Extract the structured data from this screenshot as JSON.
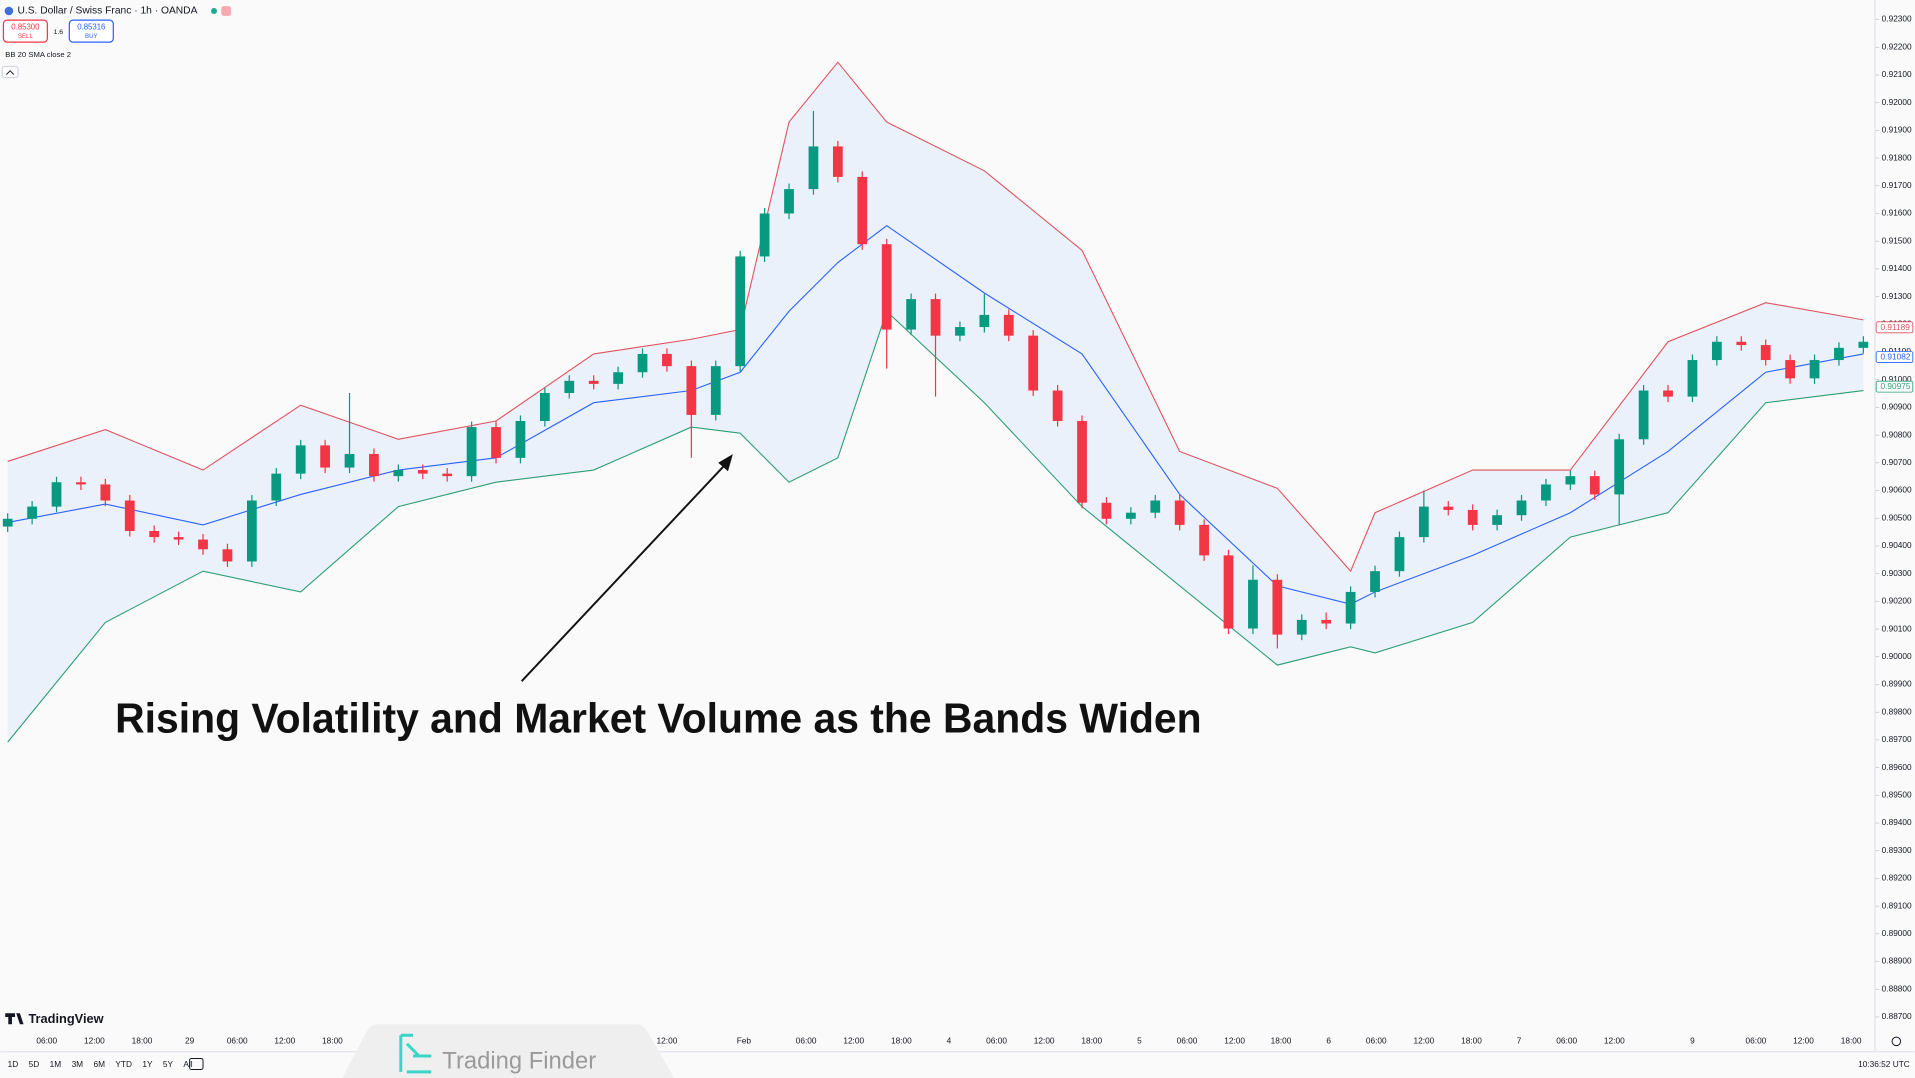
{
  "header": {
    "symbol": "U.S. Dollar / Swiss Franc · 1h · OANDA",
    "sell_price": "0.85300",
    "sell": "SELL",
    "spread": "1.6",
    "buy_price": "0.85316",
    "buy": "BUY",
    "indicator": "BB 20 SMA close 2"
  },
  "toolbar": {
    "ranges": [
      "1D",
      "5D",
      "1M",
      "3M",
      "6M",
      "YTD",
      "1Y",
      "5Y",
      "All"
    ],
    "clock": "10:36:52 UTC",
    "logo": "TradingView",
    "watermark": "Trading Finder"
  },
  "chart_data": {
    "type": "candlestick",
    "annotation": "Rising Volatility and Market Volume as the Bands Widen",
    "open": [
      0.9047,
      0.90498,
      0.90542,
      0.9063,
      0.90622,
      0.90564,
      0.90454,
      0.90432,
      0.90423,
      0.90388,
      0.90344,
      0.90564,
      0.90661,
      0.90763,
      0.90683,
      0.90732,
      0.90652,
      0.90674,
      0.90661,
      0.90652,
      0.90829,
      0.90718,
      0.90851,
      0.90952,
      0.90996,
      0.90985,
      0.91027,
      0.91093,
      0.91049,
      0.90873,
      0.91049,
      0.91445,
      0.916,
      0.91688,
      0.91842,
      0.91732,
      0.91489,
      0.91181,
      0.91291,
      0.91159,
      0.9119,
      0.91234,
      0.91159,
      0.90961,
      0.90851,
      0.90556,
      0.90498,
      0.9052,
      0.90564,
      0.90476,
      0.90366,
      0.90102,
      0.90278,
      0.9008,
      0.90133,
      0.9012,
      0.90234,
      0.90309,
      0.90432,
      0.90542,
      0.9053,
      0.90476,
      0.90511,
      0.90564,
      0.90622,
      0.90652,
      0.90586,
      0.90785,
      0.90961,
      0.90939,
      0.91071,
      0.91137,
      0.91125,
      0.91071,
      0.91005,
      0.91071,
      0.91115
    ],
    "high": [
      0.90518,
      0.90562,
      0.9065,
      0.9065,
      0.90642,
      0.90584,
      0.90474,
      0.90452,
      0.90443,
      0.90408,
      0.90584,
      0.90681,
      0.90783,
      0.90783,
      0.90952,
      0.90752,
      0.90694,
      0.90694,
      0.90681,
      0.90849,
      0.90849,
      0.90871,
      0.90972,
      0.91016,
      0.91016,
      0.91047,
      0.91113,
      0.91113,
      0.91069,
      0.91069,
      0.91465,
      0.9162,
      0.91708,
      0.9197,
      0.91862,
      0.91752,
      0.91509,
      0.91311,
      0.91311,
      0.9121,
      0.9131,
      0.91254,
      0.91179,
      0.90981,
      0.90871,
      0.90576,
      0.9054,
      0.90584,
      0.90584,
      0.90496,
      0.90386,
      0.9033,
      0.90298,
      0.90153,
      0.9016,
      0.90254,
      0.90329,
      0.90452,
      0.906,
      0.90562,
      0.9055,
      0.90531,
      0.90584,
      0.90642,
      0.90672,
      0.90672,
      0.90805,
      0.90981,
      0.90981,
      0.91091,
      0.91157,
      0.91157,
      0.91145,
      0.91091,
      0.91091,
      0.91135,
      0.91157
    ],
    "low": [
      0.9045,
      0.90478,
      0.90522,
      0.90602,
      0.90544,
      0.90434,
      0.90412,
      0.90403,
      0.90368,
      0.90324,
      0.90324,
      0.90544,
      0.90641,
      0.90663,
      0.90663,
      0.90632,
      0.90632,
      0.90641,
      0.90632,
      0.90632,
      0.90698,
      0.90698,
      0.90831,
      0.90932,
      0.90965,
      0.90965,
      0.91007,
      0.91029,
      0.90718,
      0.90853,
      0.91029,
      0.91425,
      0.9158,
      0.91668,
      0.91712,
      0.91469,
      0.9104,
      0.91161,
      0.90939,
      0.91139,
      0.9117,
      0.91139,
      0.90941,
      0.90831,
      0.90536,
      0.90478,
      0.90478,
      0.905,
      0.90456,
      0.90346,
      0.90082,
      0.90082,
      0.9003,
      0.9006,
      0.901,
      0.901,
      0.90214,
      0.90289,
      0.90412,
      0.9051,
      0.90456,
      0.90456,
      0.90491,
      0.90544,
      0.90602,
      0.90566,
      0.90476,
      0.90765,
      0.90919,
      0.90919,
      0.91051,
      0.91105,
      0.91051,
      0.90985,
      0.90985,
      0.91051,
      0.91095
    ],
    "close": [
      0.90498,
      0.90542,
      0.9063,
      0.90622,
      0.90564,
      0.90454,
      0.90432,
      0.90423,
      0.90388,
      0.90344,
      0.90564,
      0.90661,
      0.90763,
      0.90683,
      0.90732,
      0.90652,
      0.90674,
      0.90661,
      0.90652,
      0.90829,
      0.90718,
      0.90851,
      0.90952,
      0.90996,
      0.90985,
      0.91027,
      0.91093,
      0.91049,
      0.90873,
      0.91049,
      0.91445,
      0.916,
      0.91688,
      0.91842,
      0.91732,
      0.91489,
      0.91181,
      0.91291,
      0.91159,
      0.9119,
      0.91234,
      0.91159,
      0.90961,
      0.90851,
      0.90556,
      0.90498,
      0.9052,
      0.90564,
      0.90476,
      0.90366,
      0.90102,
      0.90278,
      0.9008,
      0.90133,
      0.9012,
      0.90234,
      0.90309,
      0.90432,
      0.90542,
      0.9053,
      0.90476,
      0.90511,
      0.90564,
      0.90622,
      0.90652,
      0.90586,
      0.90785,
      0.90961,
      0.90939,
      0.91071,
      0.91137,
      0.91125,
      0.91071,
      0.91005,
      0.91071,
      0.91115,
      0.91137
    ],
    "up_color": "#089981",
    "down_color": "#f23645",
    "band_fill": "#e3edf9",
    "band_x": [
      0,
      4,
      8,
      12,
      16,
      20,
      24,
      28,
      30,
      32,
      34,
      36,
      40,
      44,
      48,
      52,
      55,
      56,
      60,
      64,
      68,
      72,
      76
    ],
    "series": [
      {
        "color": "#e0525e",
        "values": [
          0.90705,
          0.9082,
          0.90674,
          0.90908,
          0.90785,
          0.90851,
          0.91093,
          0.91146,
          0.91181,
          0.9193,
          0.92146,
          0.9193,
          0.91754,
          0.91467,
          0.90741,
          0.90608,
          0.90309,
          0.9052,
          0.90674,
          0.90674,
          0.91137,
          0.91278,
          0.91216
        ],
        "last_label": {
          "value": 0.91189,
          "label": "0.91189"
        }
      },
      {
        "color": "#2962ff",
        "values": [
          0.90485,
          0.90551,
          0.90476,
          0.90586,
          0.90674,
          0.90718,
          0.90917,
          0.90961,
          0.91027,
          0.91247,
          0.91423,
          0.91556,
          0.91313,
          0.91093,
          0.90586,
          0.90256,
          0.9019,
          0.90234,
          0.90366,
          0.9052,
          0.90741,
          0.91027,
          0.91093
        ],
        "last_label": {
          "value": 0.91082,
          "label": "0.91082"
        }
      },
      {
        "color": "#2e9e74",
        "values": [
          0.89692,
          0.90124,
          0.90309,
          0.90234,
          0.90542,
          0.9063,
          0.90674,
          0.90829,
          0.90807,
          0.9063,
          0.90718,
          0.91247,
          0.90917,
          0.90542,
          0.90256,
          0.8997,
          0.90036,
          0.90014,
          0.90124,
          0.90432,
          0.9052,
          0.90917,
          0.90961
        ],
        "last_label": {
          "value": 0.90975,
          "label": "0.90975"
        }
      }
    ],
    "xlim": [
      -0.3,
      76.45
    ],
    "xticks": [
      {
        "value": 1.6,
        "label": "06:00"
      },
      {
        "value": 3.55,
        "label": "12:00"
      },
      {
        "value": 5.5,
        "label": "18:00"
      },
      {
        "value": 7.45,
        "label": "29"
      },
      {
        "value": 9.4,
        "label": "06:00"
      },
      {
        "value": 11.35,
        "label": "12:00"
      },
      {
        "value": 13.3,
        "label": "18:00"
      },
      {
        "value": 27,
        "label": "12:00"
      },
      {
        "value": 30.15,
        "label": "Feb"
      },
      {
        "value": 32.7,
        "label": "06:00"
      },
      {
        "value": 34.65,
        "label": "12:00"
      },
      {
        "value": 36.6,
        "label": "18:00"
      },
      {
        "value": 38.55,
        "label": "4"
      },
      {
        "value": 40.5,
        "label": "06:00"
      },
      {
        "value": 42.45,
        "label": "12:00"
      },
      {
        "value": 44.4,
        "label": "18:00"
      },
      {
        "value": 46.35,
        "label": "5"
      },
      {
        "value": 48.3,
        "label": "06:00"
      },
      {
        "value": 50.25,
        "label": "12:00"
      },
      {
        "value": 52.15,
        "label": "18:00"
      },
      {
        "value": 54.1,
        "label": "6"
      },
      {
        "value": 56.05,
        "label": "06:00"
      },
      {
        "value": 58,
        "label": "12:00"
      },
      {
        "value": 59.95,
        "label": "18:00"
      },
      {
        "value": 61.9,
        "label": "7"
      },
      {
        "value": 63.85,
        "label": "06:00"
      },
      {
        "value": 65.8,
        "label": "12:00"
      },
      {
        "value": 69,
        "label": "9"
      },
      {
        "value": 71.6,
        "label": "06:00"
      },
      {
        "value": 73.55,
        "label": "12:00"
      },
      {
        "value": 75.5,
        "label": "18:00"
      }
    ],
    "ylim": [
      0.887,
      0.923
    ],
    "yticks": [
      {
        "value": 0.923,
        "label": "0.92300"
      },
      {
        "value": 0.922,
        "label": "0.92200"
      },
      {
        "value": 0.921,
        "label": "0.92100"
      },
      {
        "value": 0.92,
        "label": "0.92000"
      },
      {
        "value": 0.919,
        "label": "0.91900"
      },
      {
        "value": 0.918,
        "label": "0.91800"
      },
      {
        "value": 0.917,
        "label": "0.91700"
      },
      {
        "value": 0.916,
        "label": "0.91600"
      },
      {
        "value": 0.915,
        "label": "0.91500"
      },
      {
        "value": 0.914,
        "label": "0.91400"
      },
      {
        "value": 0.913,
        "label": "0.91300"
      },
      {
        "value": 0.912,
        "label": "0.91200"
      },
      {
        "value": 0.911,
        "label": "0.91100"
      },
      {
        "value": 0.91,
        "label": "0.91000"
      },
      {
        "value": 0.909,
        "label": "0.90900"
      },
      {
        "value": 0.908,
        "label": "0.90800"
      },
      {
        "value": 0.907,
        "label": "0.90700"
      },
      {
        "value": 0.906,
        "label": "0.90600"
      },
      {
        "value": 0.905,
        "label": "0.90500"
      },
      {
        "value": 0.904,
        "label": "0.90400"
      },
      {
        "value": 0.903,
        "label": "0.90300"
      },
      {
        "value": 0.902,
        "label": "0.90200"
      },
      {
        "value": 0.901,
        "label": "0.90100"
      },
      {
        "value": 0.9,
        "label": "0.90000"
      },
      {
        "value": 0.899,
        "label": "0.89900"
      },
      {
        "value": 0.898,
        "label": "0.89800"
      },
      {
        "value": 0.897,
        "label": "0.89700"
      },
      {
        "value": 0.896,
        "label": "0.89600"
      },
      {
        "value": 0.895,
        "label": "0.89500"
      },
      {
        "value": 0.894,
        "label": "0.89400"
      },
      {
        "value": 0.893,
        "label": "0.89300"
      },
      {
        "value": 0.892,
        "label": "0.89200"
      },
      {
        "value": 0.891,
        "label": "0.89100"
      },
      {
        "value": 0.89,
        "label": "0.89000"
      },
      {
        "value": 0.889,
        "label": "0.88900"
      },
      {
        "value": 0.888,
        "label": "0.88800"
      },
      {
        "value": 0.887,
        "label": "0.88700"
      }
    ],
    "grid": false
  }
}
